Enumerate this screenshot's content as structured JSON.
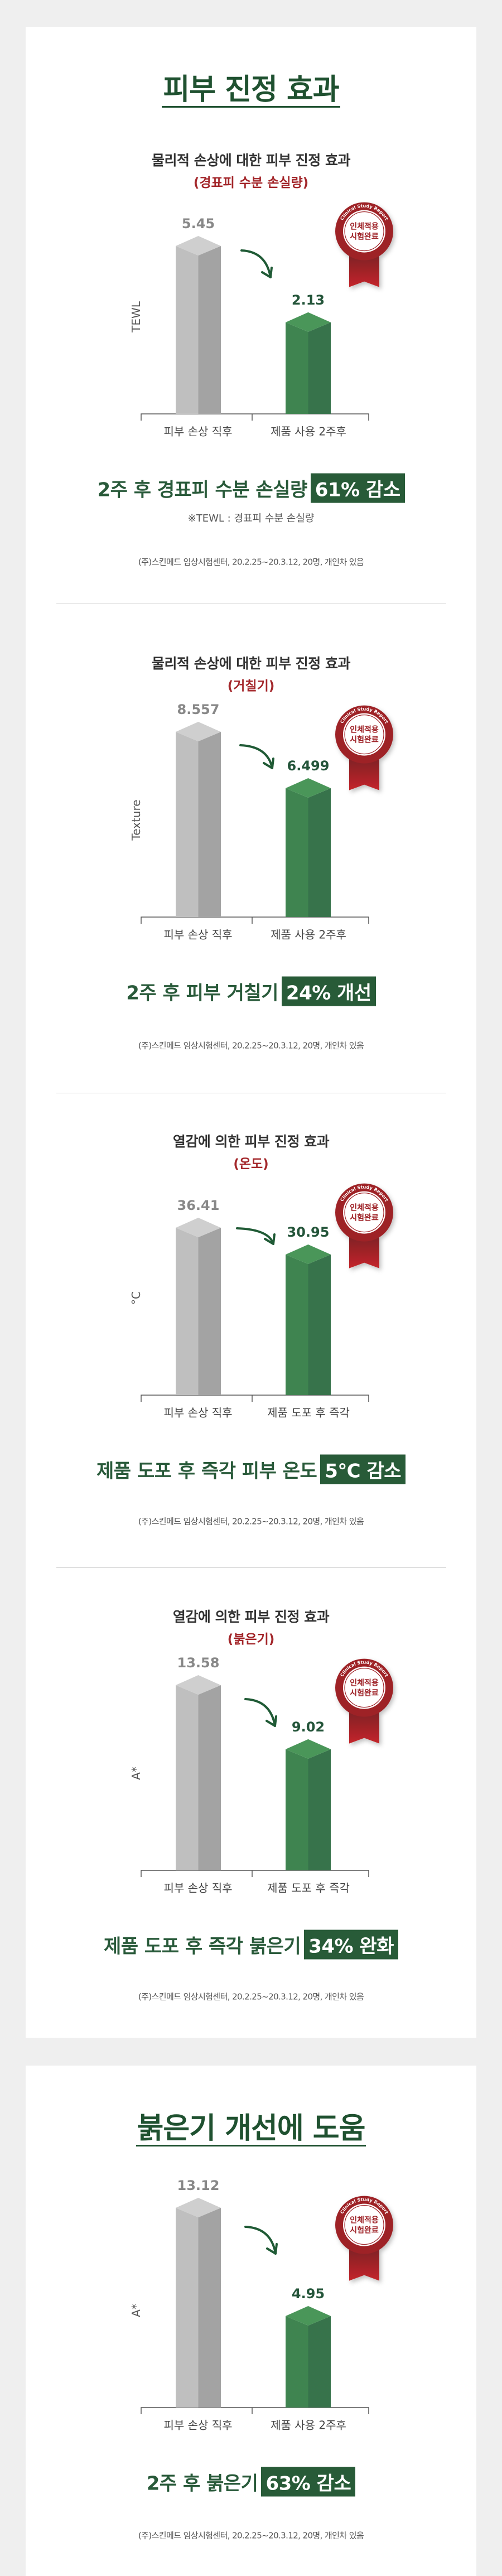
{
  "colors": {
    "background": "#efefef",
    "brand_green": "#285b38",
    "accent_red": "#a3262a",
    "bar_before": "#bfbfbf",
    "bar_after": "#3f8450"
  },
  "card1": {
    "title": "피부 진정 효과"
  },
  "card2": {
    "title": "붉은기 개선에 도움"
  },
  "badge": {
    "arc_text": "Clinical Study Report",
    "line1": "인체적용",
    "line2": "시험완료",
    "icon": "clinical-study-ribbon-badge"
  },
  "sections": [
    {
      "subtitle": "물리적 손상에 대한 피부 진정 효과",
      "subtitle_sub": "(경표피 수분 손실량)",
      "headline": "2주 후 경표피 수분 손실량",
      "highlight": "61% 감소",
      "note": "※TEWL : 경표피 수분 손실량",
      "source": "(주)스킨메드 임상시험센터, 20.2.25~20.3.12,  20명, 개인차 있음"
    },
    {
      "subtitle": "물리적 손상에 대한 피부 진정 효과",
      "subtitle_sub": "(거칠기)",
      "headline": "2주 후 피부 거칠기",
      "highlight": "24% 개선",
      "source": "(주)스킨메드 임상시험센터, 20.2.25~20.3.12,  20명, 개인차 있음"
    },
    {
      "subtitle": "열감에 의한 피부 진정 효과",
      "subtitle_sub": "(온도)",
      "headline": "제품 도포 후 즉각 피부 온도",
      "highlight": "5℃ 감소",
      "source": "(주)스킨메드 임상시험센터, 20.2.25~20.3.12,  20명, 개인차 있음"
    },
    {
      "subtitle": "열감에 의한 피부 진정 효과",
      "subtitle_sub": "(붉은기)",
      "headline": "제품 도포 후 즉각 붉은기",
      "highlight": "34% 완화",
      "source": "(주)스킨메드 임상시험센터, 20.2.25~20.3.12,  20명, 개인차 있음"
    },
    {
      "headline": "2주 후 붉은기",
      "highlight": "63% 감소",
      "source": "(주)스킨메드 임상시험센터, 20.2.25~20.3.12,  20명, 개인차 있음"
    }
  ],
  "chart_data": [
    {
      "type": "bar",
      "ylabel": "TEWL",
      "categories": [
        "피부 손상 직후",
        "제품 사용 2주후"
      ],
      "values": [
        5.45,
        2.13
      ],
      "grid": false
    },
    {
      "type": "bar",
      "ylabel": "Texture",
      "categories": [
        "피부 손상 직후",
        "제품 사용 2주후"
      ],
      "values": [
        8.557,
        6.499
      ],
      "grid": false
    },
    {
      "type": "bar",
      "ylabel": "°C",
      "categories": [
        "피부 손상 직후",
        "제품 도포 후 즉각"
      ],
      "values": [
        36.41,
        30.95
      ],
      "grid": false
    },
    {
      "type": "bar",
      "ylabel": "A*",
      "categories": [
        "피부 손상 직후",
        "제품 도포 후 즉각"
      ],
      "values": [
        13.58,
        9.02
      ],
      "grid": false
    },
    {
      "type": "bar",
      "ylabel": "A*",
      "categories": [
        "피부 손상 직후",
        "제품 사용 2주후"
      ],
      "values": [
        13.12,
        4.95
      ],
      "grid": false
    }
  ]
}
